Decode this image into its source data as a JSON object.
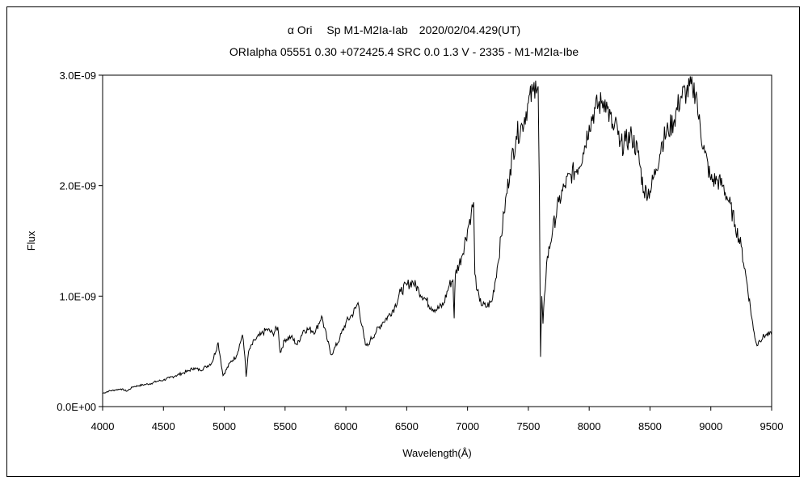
{
  "chart_data": {
    "type": "line",
    "title": "α Ori　 Sp M1-M2Ia-Iab　2020/02/04.429(UT)",
    "subtitle": "ORIalpha 05551 0.30 +072425.4 SRC 0.0 1.3 V - 2335 - M1-M2Ia-Ibe",
    "xlabel": "Wavelength(Å)",
    "ylabel": "Flux",
    "xlim": [
      4000,
      9500
    ],
    "ylim": [
      0,
      3e-09
    ],
    "x_ticks": [
      "4000",
      "4500",
      "5000",
      "5500",
      "6000",
      "6500",
      "7000",
      "7500",
      "8000",
      "8500",
      "9000",
      "9500"
    ],
    "y_ticks": [
      "0.0E+00",
      "1.0E-09",
      "2.0E-09",
      "3.0E-09"
    ],
    "grid": false,
    "legend": "none",
    "line_color": "#000000",
    "series": [
      {
        "x": [
          4000,
          4050,
          4100,
          4150,
          4200,
          4250,
          4300,
          4350,
          4400,
          4450,
          4500,
          4550,
          4600,
          4650,
          4700,
          4750,
          4800,
          4850,
          4900,
          4950,
          4970,
          4990,
          5000,
          5050,
          5100,
          5150,
          5170,
          5180,
          5200,
          5250,
          5300,
          5350,
          5400,
          5440,
          5460,
          5500,
          5550,
          5600,
          5650,
          5700,
          5750,
          5800,
          5850,
          5880,
          5900,
          5950,
          6000,
          6050,
          6080,
          6100,
          6150,
          6160,
          6180,
          6200,
          6250,
          6300,
          6350,
          6400,
          6450,
          6500,
          6550,
          6600,
          6650,
          6700,
          6750,
          6800,
          6850,
          6880,
          6890,
          6900,
          6950,
          7000,
          7030,
          7050,
          7060,
          7080,
          7100,
          7150,
          7200,
          7250,
          7300,
          7350,
          7400,
          7450,
          7500,
          7540,
          7560,
          7580,
          7590,
          7600,
          7610,
          7620,
          7650,
          7700,
          7750,
          7800,
          7850,
          7900,
          7950,
          8000,
          8050,
          8100,
          8130,
          8150,
          8200,
          8230,
          8250,
          8300,
          8350,
          8400,
          8450,
          8500,
          8550,
          8600,
          8650,
          8700,
          8750,
          8800,
          8850,
          8880,
          8900,
          8950,
          9000,
          9050,
          9100,
          9150,
          9200,
          9250,
          9300,
          9350,
          9380,
          9400,
          9450,
          9500
        ],
        "y": [
          1.2e-10,
          1.4e-10,
          1.5e-10,
          1.6e-10,
          1.4e-10,
          1.8e-10,
          1.9e-10,
          2e-10,
          2.1e-10,
          2.3e-10,
          2.4e-10,
          2.6e-10,
          2.8e-10,
          3e-10,
          3.2e-10,
          3.5e-10,
          3.3e-10,
          3.6e-10,
          4e-10,
          5.8e-10,
          4.3e-10,
          2.8e-10,
          3e-10,
          4e-10,
          4.6e-10,
          6.5e-10,
          4.5e-10,
          2.7e-10,
          5e-10,
          6e-10,
          6.5e-10,
          7e-10,
          6.6e-10,
          7.2e-10,
          4.9e-10,
          6.1e-10,
          6.3e-10,
          5.6e-10,
          6.9e-10,
          7e-10,
          6.8e-10,
          8.2e-10,
          5.9e-10,
          4.7e-10,
          5.1e-10,
          6.2e-10,
          7.6e-10,
          8.3e-10,
          8.9e-10,
          9.4e-10,
          6.2e-10,
          5.6e-10,
          5.5e-10,
          6e-10,
          6.8e-10,
          7.6e-10,
          8.2e-10,
          9e-10,
          1.04e-09,
          1.1e-09,
          1.13e-09,
          1.05e-09,
          9.8e-10,
          9e-10,
          8.8e-10,
          9.2e-10,
          1.1e-09,
          1.15e-09,
          8e-10,
          1.2e-09,
          1.35e-09,
          1.6e-09,
          1.75e-09,
          1.85e-09,
          1.2e-09,
          1.05e-09,
          9.5e-10,
          9e-10,
          9.5e-10,
          1.3e-09,
          1.75e-09,
          2.15e-09,
          2.45e-09,
          2.55e-09,
          2.75e-09,
          2.85e-09,
          2.95e-09,
          2.9e-09,
          2e-09,
          4.5e-10,
          1e-09,
          7.5e-10,
          1.3e-09,
          1.6e-09,
          1.85e-09,
          2e-09,
          2.1e-09,
          2.15e-09,
          2.3e-09,
          2.55e-09,
          2.7e-09,
          2.75e-09,
          2.78e-09,
          2.7e-09,
          2.5e-09,
          2.55e-09,
          2.35e-09,
          2.4e-09,
          2.45e-09,
          2.3e-09,
          1.95e-09,
          1.95e-09,
          2.15e-09,
          2.4e-09,
          2.5e-09,
          2.6e-09,
          2.8e-09,
          2.85e-09,
          2.88e-09,
          2.85e-09,
          2.6e-09,
          2.3e-09,
          2.05e-09,
          2.05e-09,
          2e-09,
          1.85e-09,
          1.65e-09,
          1.45e-09,
          1.1e-09,
          7e-10,
          5.5e-10,
          6e-10,
          6.5e-10,
          6.5e-10
        ]
      }
    ]
  }
}
